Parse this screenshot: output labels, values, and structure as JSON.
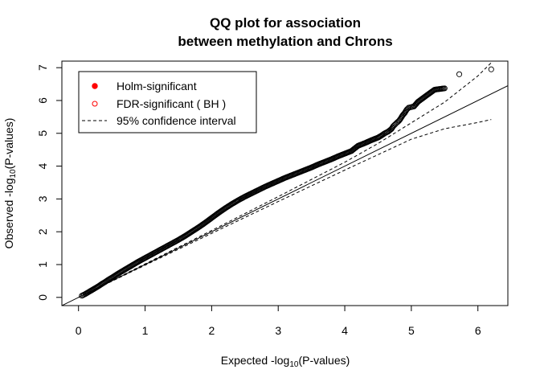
{
  "chart_data": {
    "type": "scatter",
    "title": [
      "QQ plot for association",
      "between methylation and Chrons"
    ],
    "xlabel": {
      "pre": "Expected -log",
      "sub": "10",
      "post": "(P-values)"
    },
    "ylabel": {
      "pre": "Observed -log",
      "sub": "10",
      "post": "(P-values)"
    },
    "xlim": [
      -0.25,
      6.45
    ],
    "ylim": [
      -0.25,
      7.2
    ],
    "xticks": [
      0,
      1,
      2,
      3,
      4,
      5,
      6
    ],
    "yticks": [
      0,
      1,
      2,
      3,
      4,
      5,
      6,
      7
    ],
    "grid": false,
    "legend": {
      "position": "top-left",
      "entries": [
        {
          "label": "Holm-significant",
          "marker": "filled-circle",
          "color": "#ff0000"
        },
        {
          "label": "FDR-significant ( BH )",
          "marker": "open-circle",
          "color": "#ff0000"
        },
        {
          "label": "95% confidence interval",
          "marker": "dashed-line",
          "color": "#000000"
        }
      ]
    },
    "reference_line": {
      "slope": 1,
      "intercept": 0
    },
    "series": [
      {
        "type": "points",
        "x": [
          0.05,
          0.1,
          0.15,
          0.2,
          0.25,
          0.3,
          0.35,
          0.4,
          0.45,
          0.5,
          0.6,
          0.7,
          0.8,
          0.9,
          1.0,
          1.1,
          1.2,
          1.3,
          1.4,
          1.5,
          1.6,
          1.7,
          1.8,
          1.9,
          2.0,
          2.1,
          2.2,
          2.3,
          2.4,
          2.5,
          2.6,
          2.7,
          2.8,
          2.9,
          3.0,
          3.1,
          3.2,
          3.3,
          3.4,
          3.5,
          3.6,
          3.7,
          3.8,
          3.9,
          4.0,
          4.1,
          4.2,
          4.3,
          4.4,
          4.5,
          4.55,
          4.6,
          4.65,
          4.7,
          4.73,
          4.76
        ],
        "y": [
          0.05,
          0.1,
          0.16,
          0.22,
          0.28,
          0.34,
          0.41,
          0.47,
          0.54,
          0.6,
          0.73,
          0.85,
          0.97,
          1.09,
          1.2,
          1.31,
          1.42,
          1.53,
          1.64,
          1.75,
          1.87,
          2.0,
          2.13,
          2.27,
          2.42,
          2.57,
          2.71,
          2.84,
          2.96,
          3.07,
          3.17,
          3.27,
          3.37,
          3.46,
          3.55,
          3.64,
          3.72,
          3.8,
          3.88,
          3.96,
          4.05,
          4.13,
          4.21,
          4.3,
          4.38,
          4.46,
          4.62,
          4.7,
          4.79,
          4.87,
          4.93,
          5.0,
          5.05,
          5.13,
          5.22,
          5.28
        ]
      },
      {
        "type": "points",
        "x": [
          4.78,
          4.81,
          4.84,
          4.87,
          4.9,
          4.93,
          4.96,
          5.0,
          5.04,
          5.1,
          5.16,
          5.22,
          5.35,
          5.5,
          5.72,
          6.2
        ],
        "y": [
          5.32,
          5.37,
          5.45,
          5.55,
          5.62,
          5.72,
          5.78,
          5.8,
          5.82,
          5.96,
          6.05,
          6.14,
          6.33,
          6.37,
          6.8,
          6.95
        ]
      },
      {
        "type": "upper-ci",
        "x": [
          0,
          1,
          2,
          3,
          4,
          4.5,
          5,
          5.5,
          6,
          6.2
        ],
        "y": [
          0,
          1.02,
          2.04,
          3.07,
          4.12,
          4.69,
          5.32,
          5.95,
          6.75,
          7.15
        ]
      },
      {
        "type": "lower-ci",
        "x": [
          0,
          1,
          2,
          3,
          4,
          4.5,
          5,
          5.5,
          6,
          6.2
        ],
        "y": [
          0,
          0.98,
          1.95,
          2.92,
          3.88,
          4.35,
          4.82,
          5.14,
          5.33,
          5.42
        ]
      }
    ]
  }
}
